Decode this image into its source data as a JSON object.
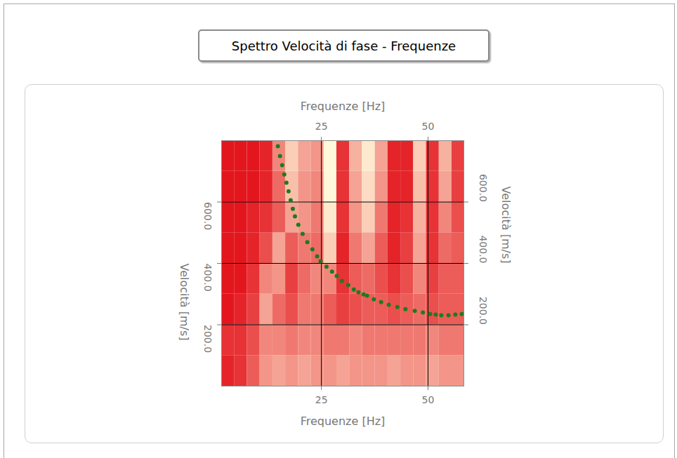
{
  "chart_data": {
    "type": "scatter",
    "title": "Spettro Velocità di fase - Frequenze",
    "x_label": "Frequenze [Hz]",
    "y_label": "Velocità [m/s]",
    "xlim": [
      1.6,
      58.4
    ],
    "ylim": [
      0,
      800
    ],
    "xticks": [
      25,
      50
    ],
    "yticks": [
      {
        "value": 200,
        "label": "200.0"
      },
      {
        "value": 400,
        "label": "400.0"
      },
      {
        "value": 600,
        "label": "600.0"
      }
    ],
    "grid": true,
    "color": "#1e7b1e",
    "marker": "circle",
    "x": [
      14.8,
      15.3,
      15.8,
      16.3,
      16.8,
      17.3,
      17.8,
      18.3,
      18.8,
      19.6,
      20.6,
      21.7,
      22.9,
      24.0,
      24.8,
      26.2,
      27.5,
      28.6,
      29.8,
      31.3,
      32.6,
      33.7,
      34.9,
      35.7,
      37.3,
      39.0,
      40.8,
      42.8,
      44.7,
      46.9,
      48.8,
      50.5,
      51.8,
      53.1,
      54.8,
      56.4,
      57.9
    ],
    "values": [
      782,
      750,
      720,
      690,
      663,
      635,
      606,
      578,
      553,
      526,
      496,
      469,
      446,
      423,
      407,
      389,
      373,
      359,
      343,
      329,
      315,
      306,
      299,
      295,
      283,
      274,
      265,
      258,
      251,
      245,
      240,
      235,
      233,
      231,
      231,
      233,
      235
    ],
    "cells": {
      "x_edges": [
        1.6,
        4.6,
        7.6,
        10.6,
        13.6,
        16.6,
        19.6,
        22.6,
        25.6,
        28.6,
        31.6,
        34.6,
        37.6,
        40.6,
        43.6,
        46.6,
        49.6,
        52.6,
        55.6,
        58.4
      ],
      "y_edges": [
        0,
        100,
        200,
        300,
        400,
        500,
        600,
        700,
        800
      ],
      "values": [
        [
          0.1,
          0.15,
          0.3,
          0.5,
          0.55,
          0.5,
          0.55,
          0.5,
          0.5,
          0.55,
          0.5,
          0.5,
          0.5,
          0.55,
          0.5,
          0.5,
          0.55,
          0.5,
          0.5
        ],
        [
          0.15,
          0.15,
          0.25,
          0.45,
          0.45,
          0.4,
          0.45,
          0.45,
          0.4,
          0.4,
          0.45,
          0.4,
          0.4,
          0.4,
          0.4,
          0.4,
          0.45,
          0.4,
          0.4
        ],
        [
          0.05,
          0.1,
          0.2,
          0.55,
          0.35,
          0.25,
          0.4,
          0.4,
          0.3,
          0.2,
          0.25,
          0.3,
          0.3,
          0.25,
          0.3,
          0.35,
          0.25,
          0.3,
          0.3
        ],
        [
          0.05,
          0.05,
          0.15,
          0.45,
          0.5,
          0.2,
          0.35,
          0.45,
          0.45,
          0.15,
          0.3,
          0.35,
          0.25,
          0.15,
          0.25,
          0.45,
          0.2,
          0.3,
          0.3
        ],
        [
          0.05,
          0.05,
          0.1,
          0.25,
          0.55,
          0.3,
          0.4,
          0.35,
          0.7,
          0.1,
          0.4,
          0.55,
          0.3,
          0.1,
          0.2,
          0.55,
          0.15,
          0.35,
          0.3
        ],
        [
          0.05,
          0.05,
          0.1,
          0.15,
          0.3,
          0.55,
          0.5,
          0.4,
          0.8,
          0.15,
          0.5,
          0.7,
          0.4,
          0.1,
          0.15,
          0.6,
          0.15,
          0.45,
          0.25
        ],
        [
          0.05,
          0.05,
          0.05,
          0.1,
          0.35,
          0.65,
          0.5,
          0.45,
          0.85,
          0.15,
          0.55,
          0.75,
          0.5,
          0.1,
          0.1,
          0.65,
          0.15,
          0.55,
          0.2
        ],
        [
          0.05,
          0.05,
          0.05,
          0.1,
          0.45,
          0.7,
          0.55,
          0.5,
          0.85,
          0.15,
          0.6,
          0.8,
          0.55,
          0.1,
          0.1,
          0.7,
          0.15,
          0.6,
          0.2
        ]
      ]
    }
  }
}
